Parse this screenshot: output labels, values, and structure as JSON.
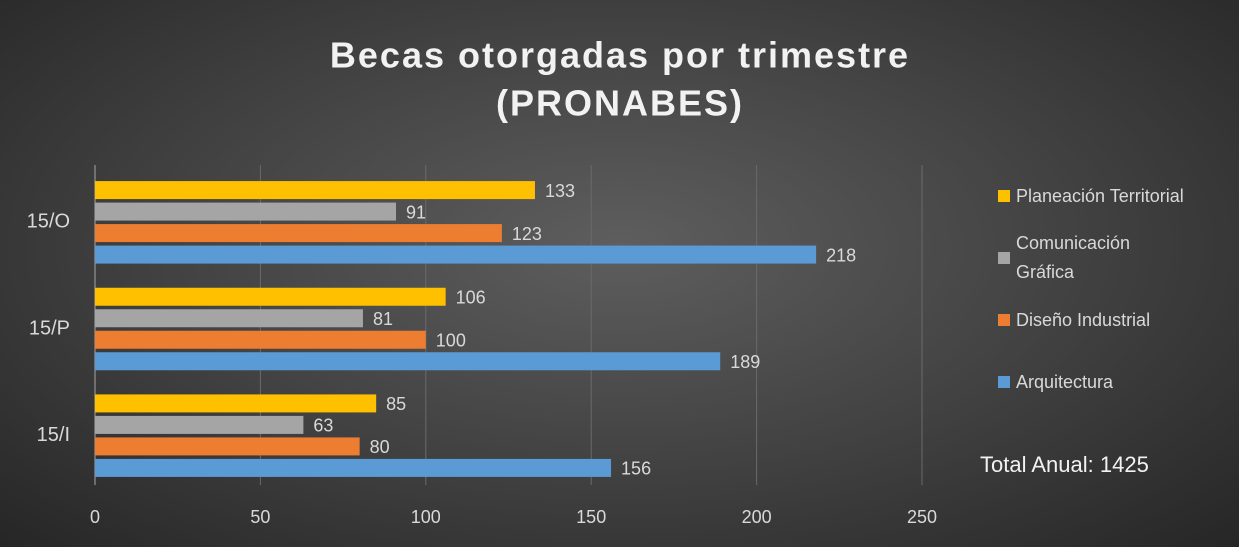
{
  "chart_data": {
    "type": "bar",
    "orientation": "horizontal",
    "title": [
      "Becas otorgadas por trimestre",
      "(PRONABES)"
    ],
    "categories": [
      "15/I",
      "15/P",
      "15/O"
    ],
    "series": [
      {
        "name": "Planeación Territorial",
        "color": "#ffc000",
        "values": [
          85,
          106,
          133
        ]
      },
      {
        "name": "Comunicación Gráfica",
        "color": "#a5a5a5",
        "values": [
          63,
          81,
          91
        ]
      },
      {
        "name": "Diseño Industrial",
        "color": "#ed7d31",
        "values": [
          80,
          100,
          123
        ]
      },
      {
        "name": "Arquitectura",
        "color": "#5b9bd5",
        "values": [
          156,
          189,
          218
        ]
      }
    ],
    "xlim": [
      0,
      250
    ],
    "xticks": [
      0,
      50,
      100,
      150,
      200,
      250
    ],
    "grid": true,
    "legend": "right",
    "annotation": "Total Anual: 1425"
  }
}
